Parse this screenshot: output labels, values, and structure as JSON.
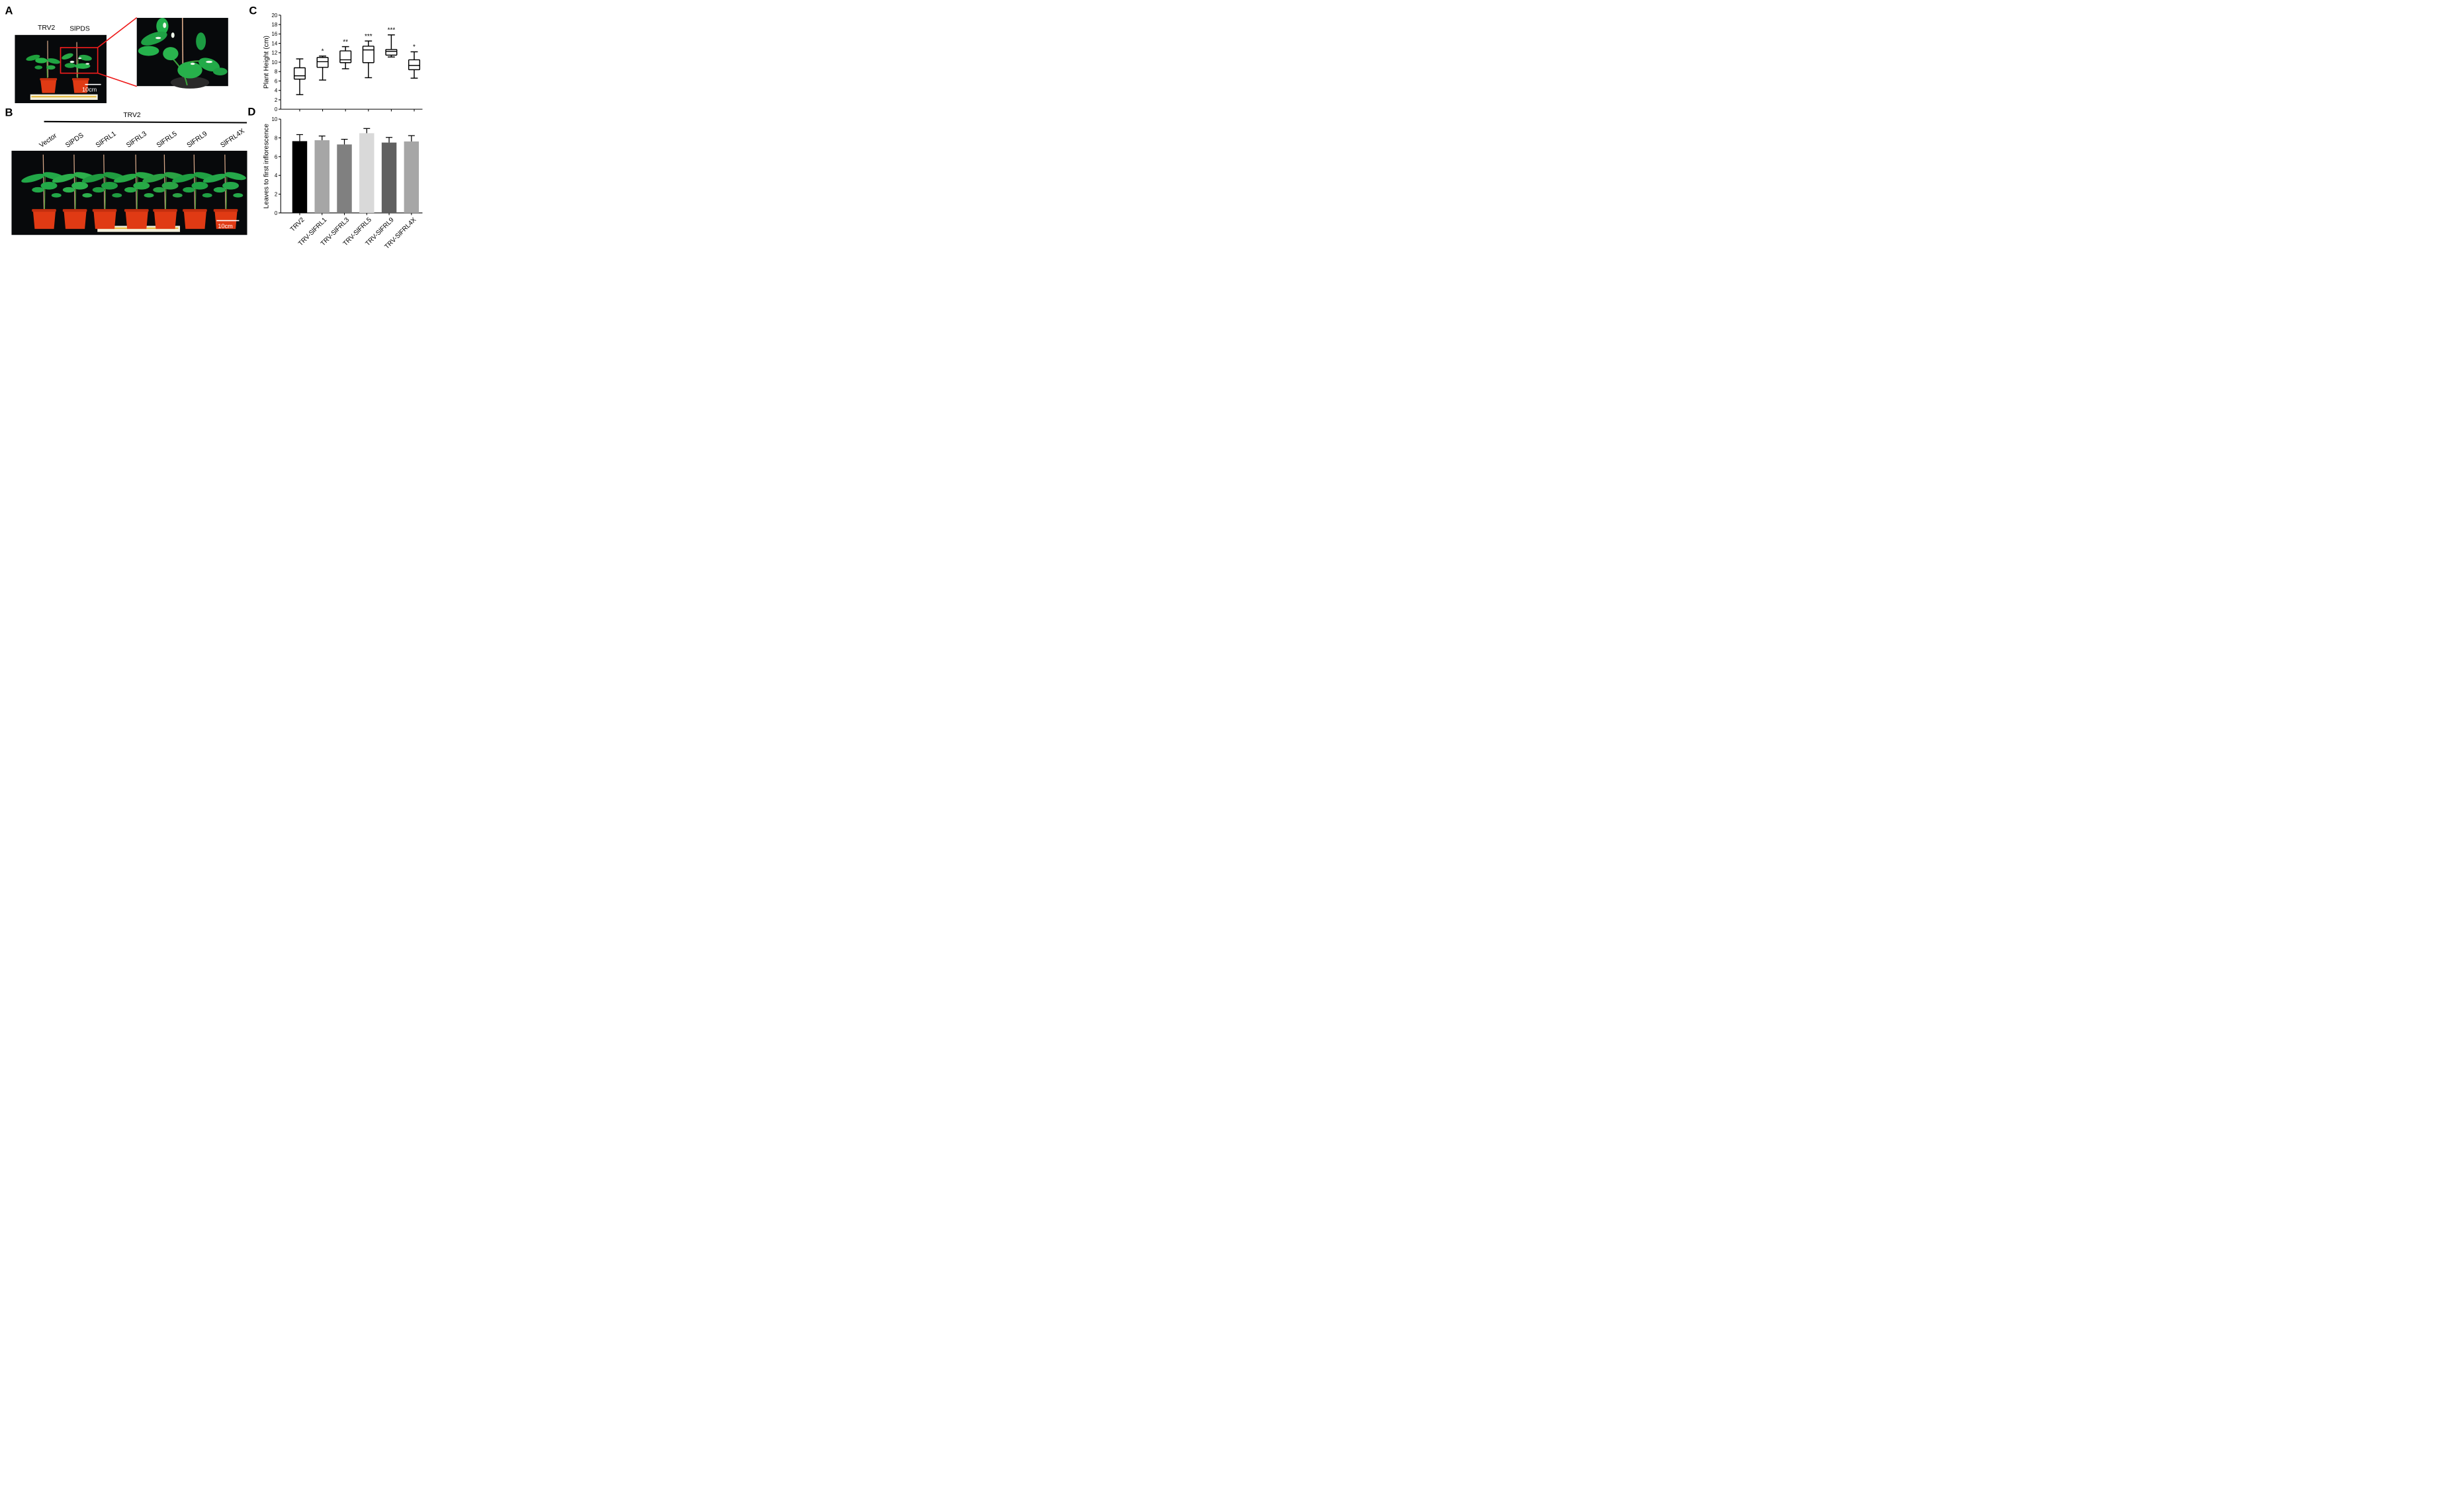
{
  "panels": {
    "a": "A",
    "b": "B",
    "c": "C",
    "d": "D"
  },
  "photo_a": {
    "labels": [
      "TRV2",
      "SlPDS"
    ],
    "scale_bar": "10cm"
  },
  "photo_b": {
    "group_label": "TRV2",
    "labels": [
      "Vector",
      "SlPDS",
      "SlFRL1",
      "SlFRL3",
      "SlFRL5",
      "SlFRL9",
      "SlFRL4X"
    ],
    "scale_bar": "10cm"
  },
  "chart_data": [
    {
      "id": "C",
      "type": "box",
      "ylabel": "Plant Height (cm)",
      "ylim": [
        0,
        20
      ],
      "yticks": [
        0,
        2,
        4,
        6,
        8,
        10,
        12,
        14,
        16,
        18,
        20
      ],
      "grid": false,
      "categories": [
        "TRV2",
        "TRV-SlFRL1",
        "TRV-SlFRL3",
        "TRV-SlFRL5",
        "TRV-SlFRL9",
        "TRV-SlFRL4X"
      ],
      "boxes": [
        {
          "min": 3.1,
          "q1": 6.4,
          "median": 7.1,
          "q3": 8.8,
          "max": 10.7,
          "sig": ""
        },
        {
          "min": 6.2,
          "q1": 8.9,
          "median": 10.1,
          "q3": 11.0,
          "max": 11.3,
          "sig": "*"
        },
        {
          "min": 8.6,
          "q1": 9.9,
          "median": 10.5,
          "q3": 12.4,
          "max": 13.3,
          "sig": "**"
        },
        {
          "min": 6.7,
          "q1": 9.9,
          "median": 12.6,
          "q3": 13.4,
          "max": 14.5,
          "sig": "***"
        },
        {
          "min": 11.1,
          "q1": 11.5,
          "median": 12.3,
          "q3": 12.7,
          "max": 15.8,
          "sig": "***"
        },
        {
          "min": 6.6,
          "q1": 8.4,
          "median": 9.3,
          "q3": 10.5,
          "max": 12.2,
          "sig": "*"
        }
      ]
    },
    {
      "id": "D",
      "type": "bar",
      "ylabel": "Leaves to first inflorescence",
      "ylim": [
        0,
        10
      ],
      "yticks": [
        0,
        2,
        4,
        6,
        8,
        10
      ],
      "grid": false,
      "categories": [
        "TRV2",
        "TRV-SlFRL1",
        "TRV-SlFRL3",
        "TRV-SlFRL5",
        "TRV-SlFRL9",
        "TRV-SlFRL4X"
      ],
      "values": [
        7.65,
        7.75,
        7.3,
        8.5,
        7.5,
        7.62
      ],
      "errors": [
        0.7,
        0.45,
        0.55,
        0.5,
        0.55,
        0.62
      ],
      "colors": [
        "#000000",
        "#a6a6a6",
        "#808080",
        "#d9d9d9",
        "#606060",
        "#a6a6a6"
      ]
    }
  ]
}
